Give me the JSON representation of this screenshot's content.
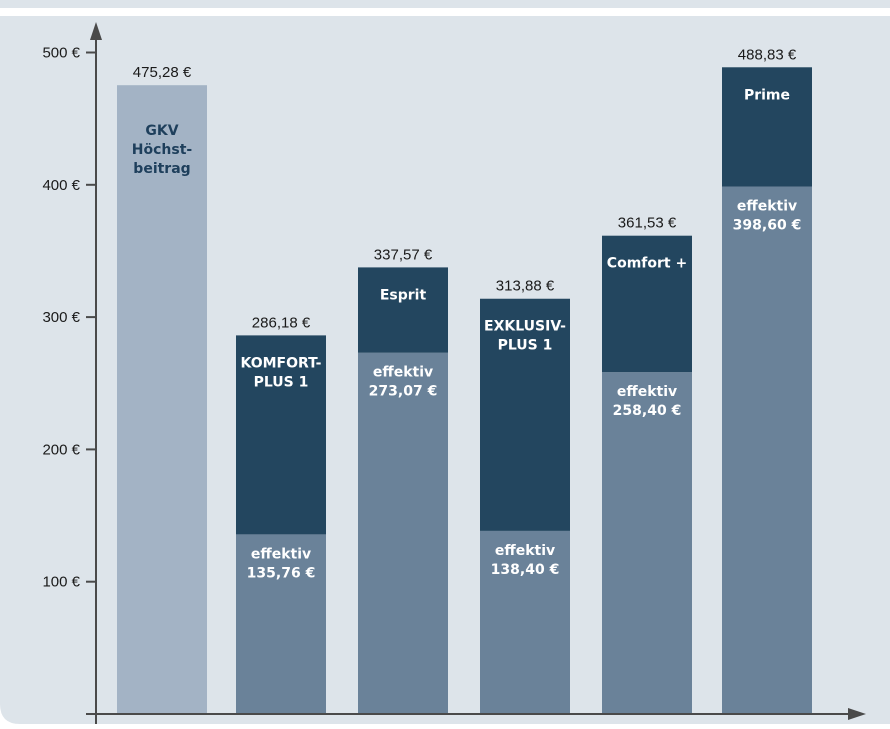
{
  "chart_data": {
    "type": "bar",
    "stacked": true,
    "ylim": [
      0,
      530
    ],
    "yticks": [
      100,
      200,
      300,
      400,
      500
    ],
    "ytick_labels": [
      "100 €",
      "200 €",
      "300 €",
      "400 €",
      "500 €"
    ],
    "grid": false,
    "legend": "none",
    "colors": {
      "background": "#dde4ea",
      "reference_bar": "#a3b3c5",
      "effective_segment": "#6a8299",
      "surplus_segment": "#23465f",
      "axis": "#4a4a4a"
    },
    "categories": [
      "GKV Höchstbeitrag",
      "KOMFORT-PLUS 1",
      "Esprit",
      "EXKLUSIV-PLUS 1",
      "Comfort+",
      "Prime"
    ],
    "bars": [
      {
        "kind": "reference",
        "total": 475.28,
        "total_label": "475,28 €",
        "effective": null,
        "effective_label": [],
        "name_lines": [
          "GKV",
          "Höchst-",
          "beitrag"
        ]
      },
      {
        "kind": "plan",
        "total": 286.18,
        "total_label": "286,18 €",
        "effective": 135.76,
        "effective_label": [
          "effektiv",
          "135,76 €"
        ],
        "name_lines": [
          "KOMFORT-",
          "PLUS 1"
        ]
      },
      {
        "kind": "plan",
        "total": 337.57,
        "total_label": "337,57 €",
        "effective": 273.07,
        "effective_label": [
          "effektiv",
          "273,07 €"
        ],
        "name_lines": [
          "Esprit"
        ]
      },
      {
        "kind": "plan",
        "total": 313.88,
        "total_label": "313,88 €",
        "effective": 138.4,
        "effective_label": [
          "effektiv",
          "138,40 €"
        ],
        "name_lines": [
          "EXKLUSIV-",
          "PLUS 1"
        ]
      },
      {
        "kind": "plan",
        "total": 361.53,
        "total_label": "361,53 €",
        "effective": 258.4,
        "effective_label": [
          "effektiv",
          "258,40 €"
        ],
        "name_lines": [
          "Comfort +"
        ]
      },
      {
        "kind": "plan",
        "total": 488.83,
        "total_label": "488,83 €",
        "effective": 398.6,
        "effective_label": [
          "effektiv",
          "398,60 €"
        ],
        "name_lines": [
          "Prime"
        ]
      }
    ]
  }
}
